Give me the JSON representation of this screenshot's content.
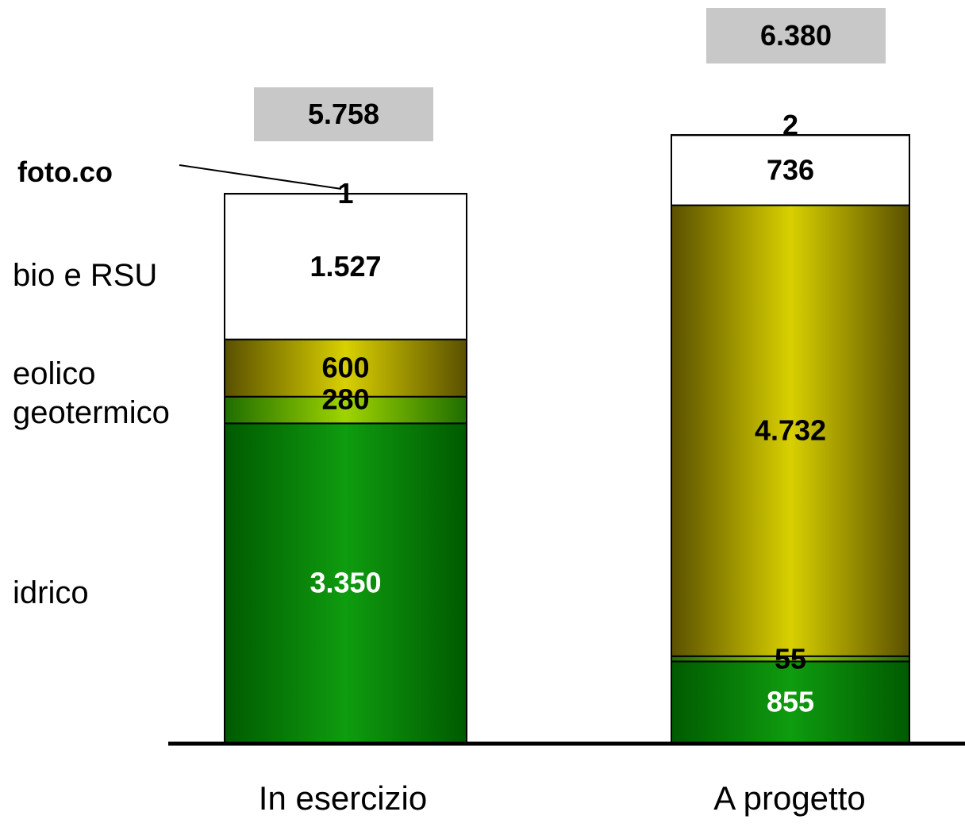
{
  "chart_data": {
    "type": "bar",
    "stacked": true,
    "categories": [
      "In esercizio",
      "A progetto"
    ],
    "series": [
      {
        "name": "idrico",
        "values": [
          3350,
          855
        ],
        "labels": [
          "3.350",
          "855"
        ],
        "label_color": "#ffffff",
        "fill": "green"
      },
      {
        "name": "geotermico",
        "values": [
          280,
          55
        ],
        "labels": [
          "280",
          "55"
        ],
        "label_color": "#000000",
        "fill": "light-green"
      },
      {
        "name": "eolico",
        "values": [
          600,
          4732
        ],
        "labels": [
          "600",
          "4.732"
        ],
        "label_color": "#000000",
        "fill": "olive"
      },
      {
        "name": "bio e RSU",
        "values": [
          1527,
          736
        ],
        "labels": [
          "1.527",
          "736"
        ],
        "label_color": "#000000",
        "fill": "white"
      },
      {
        "name": "foto.co",
        "values": [
          1,
          2
        ],
        "labels": [
          "1",
          "2"
        ],
        "label_color": "#000000",
        "fill": "white"
      }
    ],
    "totals": [
      {
        "value": 5758,
        "label": "5.758"
      },
      {
        "value": 6380,
        "label": "6.380"
      }
    ],
    "colors": {
      "green_edge": "#005a00",
      "green_mid": "#0f9c0f",
      "lightgreen_edge": "#1e6e00",
      "lightgreen_mid": "#9fd400",
      "olive_edge": "#5a5000",
      "olive_mid": "#d8d000",
      "white": "#ffffff",
      "total_box": "#c8c8c8"
    }
  }
}
